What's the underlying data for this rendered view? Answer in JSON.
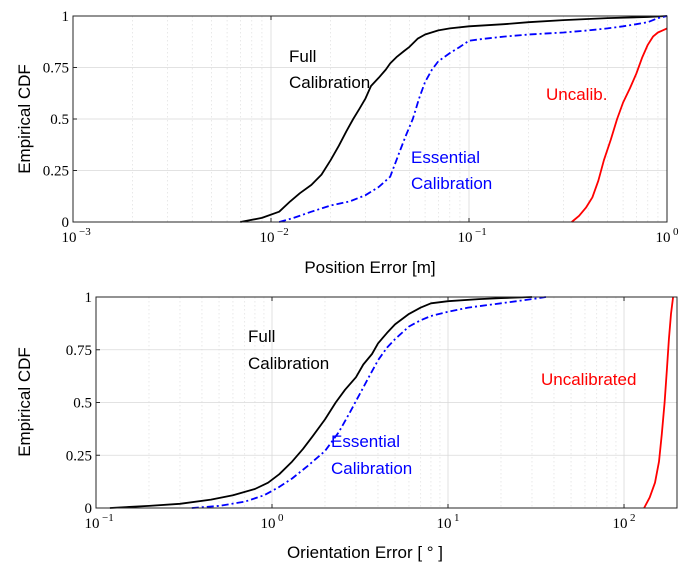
{
  "colors": {
    "full": "#000000",
    "essential": "#0000ff",
    "uncalibrated": "#ff0000"
  },
  "chart_data": [
    {
      "type": "line",
      "xscale": "log",
      "xlabel": "Position Error [m]",
      "ylabel": "Empirical CDF",
      "xlim": [
        0.001,
        1
      ],
      "ylim": [
        0,
        1
      ],
      "grid": true,
      "xticks": [
        {
          "base": "10",
          "exp": "−3",
          "value": 0.001
        },
        {
          "base": "10",
          "exp": "−2",
          "value": 0.01
        },
        {
          "base": "10",
          "exp": "−1",
          "value": 0.1
        },
        {
          "base": "10",
          "exp": "0",
          "value": 1
        }
      ],
      "yticks": [
        {
          "label": "0",
          "value": 0
        },
        {
          "label": "0.25",
          "value": 0.25
        },
        {
          "label": "0.5",
          "value": 0.5
        },
        {
          "label": "0.75",
          "value": 0.75
        },
        {
          "label": "1",
          "value": 1
        }
      ],
      "series": [
        {
          "key": "full",
          "style": "solid",
          "x": [
            0.007,
            0.009,
            0.011,
            0.0125,
            0.014,
            0.016,
            0.018,
            0.02,
            0.022,
            0.024,
            0.026,
            0.028,
            0.03,
            0.032,
            0.035,
            0.038,
            0.04,
            0.043,
            0.047,
            0.05,
            0.055,
            0.06,
            0.07,
            0.08,
            0.1,
            0.15,
            0.2,
            0.3,
            0.5,
            0.8,
            1.0
          ],
          "y": [
            0.0,
            0.02,
            0.05,
            0.1,
            0.14,
            0.18,
            0.23,
            0.3,
            0.37,
            0.44,
            0.5,
            0.55,
            0.6,
            0.66,
            0.7,
            0.74,
            0.77,
            0.8,
            0.83,
            0.85,
            0.89,
            0.91,
            0.93,
            0.94,
            0.95,
            0.96,
            0.97,
            0.98,
            0.99,
            0.995,
            1.0
          ]
        },
        {
          "key": "essential",
          "style": "dashdot",
          "x": [
            0.011,
            0.013,
            0.016,
            0.02,
            0.025,
            0.03,
            0.035,
            0.04,
            0.045,
            0.048,
            0.052,
            0.056,
            0.06,
            0.065,
            0.07,
            0.08,
            0.09,
            0.1,
            0.12,
            0.15,
            0.2,
            0.3,
            0.4,
            0.5,
            0.6,
            0.7,
            0.8,
            0.9,
            1.0
          ],
          "y": [
            0.0,
            0.02,
            0.05,
            0.08,
            0.1,
            0.13,
            0.17,
            0.22,
            0.35,
            0.42,
            0.5,
            0.6,
            0.68,
            0.74,
            0.78,
            0.82,
            0.85,
            0.88,
            0.89,
            0.9,
            0.91,
            0.92,
            0.93,
            0.94,
            0.95,
            0.96,
            0.97,
            0.99,
            1.0
          ]
        },
        {
          "key": "uncalibrated",
          "style": "solid",
          "x": [
            0.33,
            0.36,
            0.39,
            0.42,
            0.45,
            0.48,
            0.52,
            0.56,
            0.6,
            0.65,
            0.7,
            0.75,
            0.8,
            0.85,
            0.9,
            0.95,
            1.0
          ],
          "y": [
            0.0,
            0.03,
            0.07,
            0.12,
            0.2,
            0.3,
            0.4,
            0.5,
            0.58,
            0.65,
            0.72,
            0.8,
            0.86,
            0.9,
            0.92,
            0.93,
            0.94
          ]
        }
      ],
      "annotations": [
        {
          "lines": [
            "Full",
            "Calibration"
          ],
          "color_key": "full"
        },
        {
          "lines": [
            "Essential",
            "Calibration"
          ],
          "color_key": "essential"
        },
        {
          "lines": [
            "Uncalib."
          ],
          "color_key": "uncalibrated"
        }
      ]
    },
    {
      "type": "line",
      "xscale": "log",
      "xlabel": "Orientation Error [ ° ]",
      "ylabel": "Empirical CDF",
      "xlim": [
        0.1,
        200
      ],
      "ylim": [
        0,
        1
      ],
      "grid": true,
      "xticks": [
        {
          "base": "10",
          "exp": "−1",
          "value": 0.1
        },
        {
          "base": "10",
          "exp": "0",
          "value": 1
        },
        {
          "base": "10",
          "exp": "1",
          "value": 10
        },
        {
          "base": "10",
          "exp": "2",
          "value": 100
        }
      ],
      "yticks": [
        {
          "label": "0",
          "value": 0
        },
        {
          "label": "0.25",
          "value": 0.25
        },
        {
          "label": "0.5",
          "value": 0.5
        },
        {
          "label": "0.75",
          "value": 0.75
        },
        {
          "label": "1",
          "value": 1
        }
      ],
      "series": [
        {
          "key": "full",
          "style": "solid",
          "x": [
            0.12,
            0.2,
            0.3,
            0.45,
            0.6,
            0.8,
            0.95,
            1.1,
            1.3,
            1.5,
            1.7,
            2.0,
            2.3,
            2.6,
            3.0,
            3.3,
            3.7,
            4.0,
            4.5,
            5.0,
            6.0,
            7.0,
            8.0,
            10.0,
            15.0,
            20.0,
            30.0
          ],
          "y": [
            0.0,
            0.01,
            0.02,
            0.04,
            0.06,
            0.09,
            0.12,
            0.16,
            0.22,
            0.28,
            0.34,
            0.42,
            0.5,
            0.56,
            0.62,
            0.68,
            0.73,
            0.78,
            0.83,
            0.87,
            0.92,
            0.95,
            0.97,
            0.98,
            0.99,
            0.995,
            1.0
          ]
        },
        {
          "key": "essential",
          "style": "dashdot",
          "x": [
            0.35,
            0.5,
            0.7,
            0.9,
            1.1,
            1.3,
            1.6,
            2.0,
            2.4,
            2.8,
            3.2,
            3.6,
            4.0,
            4.5,
            5.0,
            6.0,
            7.0,
            8.0,
            10.0,
            13.0,
            20.0,
            30.0,
            36.0
          ],
          "y": [
            0.0,
            0.01,
            0.03,
            0.06,
            0.1,
            0.14,
            0.2,
            0.27,
            0.36,
            0.46,
            0.55,
            0.63,
            0.7,
            0.76,
            0.8,
            0.86,
            0.89,
            0.91,
            0.93,
            0.95,
            0.97,
            0.99,
            1.0
          ]
        },
        {
          "key": "uncalibrated",
          "style": "solid",
          "x": [
            130,
            140,
            150,
            158,
            164,
            170,
            175,
            180,
            185,
            190
          ],
          "y": [
            0.0,
            0.05,
            0.12,
            0.22,
            0.35,
            0.5,
            0.65,
            0.8,
            0.92,
            1.0
          ]
        }
      ],
      "annotations": [
        {
          "lines": [
            "Full",
            "Calibration"
          ],
          "color_key": "full"
        },
        {
          "lines": [
            "Essential",
            "Calibration"
          ],
          "color_key": "essential"
        },
        {
          "lines": [
            "Uncalibrated"
          ],
          "color_key": "uncalibrated"
        }
      ]
    }
  ]
}
